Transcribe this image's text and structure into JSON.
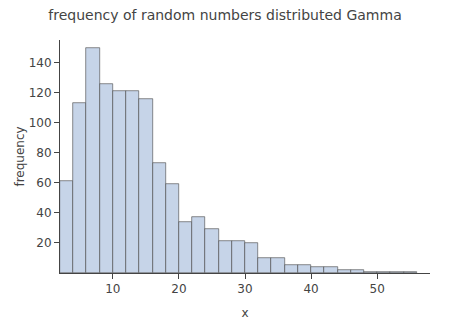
{
  "chart_data": {
    "type": "histogram",
    "title": "frequency of random numbers distributed Gamma",
    "xlabel": "x",
    "ylabel": "frequency",
    "bins": [
      2,
      4,
      6,
      8,
      10,
      12,
      14,
      16,
      18,
      20,
      22,
      24,
      26,
      28,
      30,
      32,
      34,
      36,
      38,
      40,
      42,
      44,
      46,
      48,
      50,
      52,
      54,
      56
    ],
    "values": [
      61,
      113,
      150,
      126,
      121,
      121,
      116,
      73,
      59,
      34,
      37,
      29,
      21,
      21,
      20,
      10,
      10,
      5,
      5,
      4,
      4,
      2,
      2,
      1,
      1,
      1,
      1
    ],
    "color": "#c6d4e8",
    "xlim": [
      2,
      58
    ],
    "ylim": [
      0,
      155
    ],
    "xticks": [
      10,
      20,
      30,
      40,
      50
    ],
    "yticks": [
      20,
      40,
      60,
      80,
      100,
      120,
      140
    ],
    "grid": false
  }
}
